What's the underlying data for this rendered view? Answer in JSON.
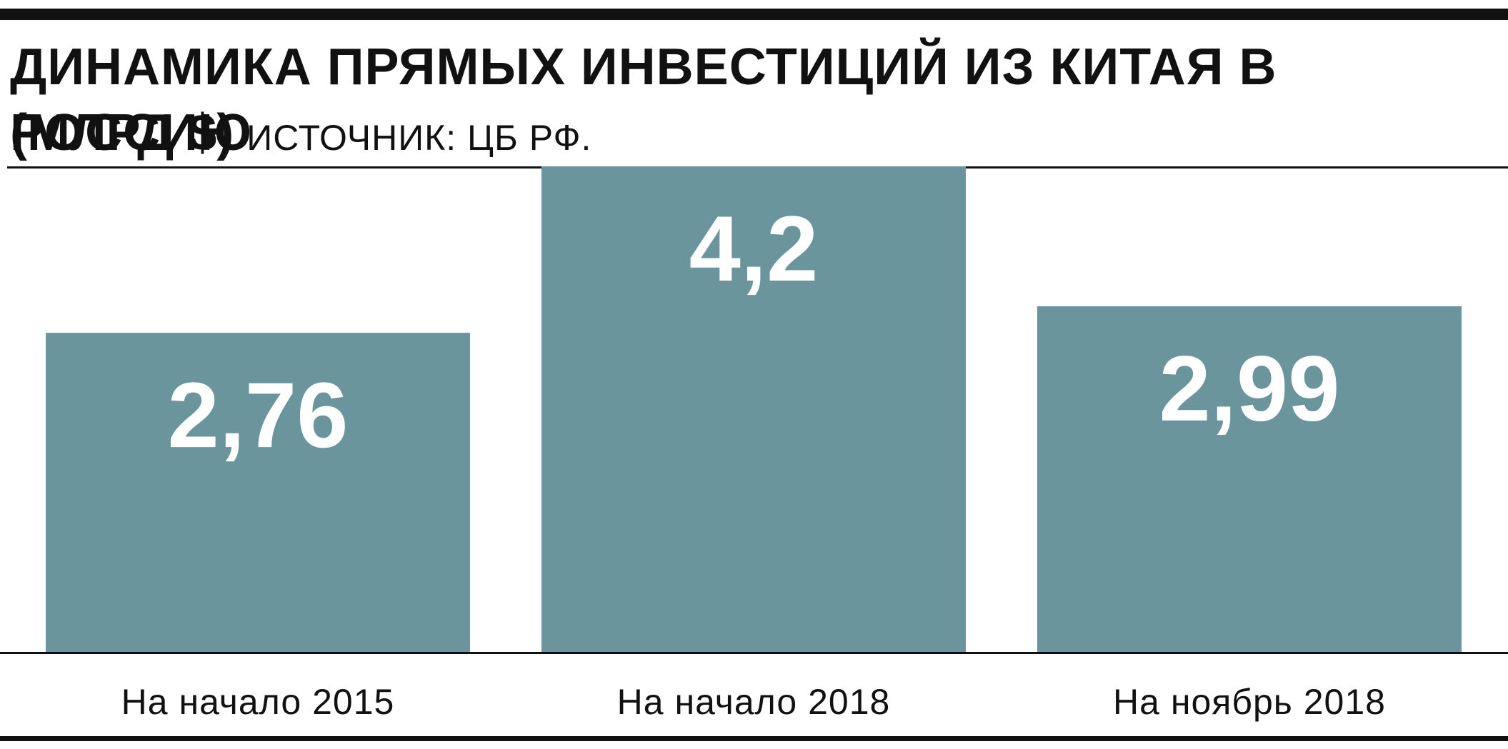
{
  "chart_data": {
    "type": "bar",
    "title": "ДИНАМИКА ПРЯМЫХ ИНВЕСТИЦИЙ ИЗ КИТАЯ В РОССИЮ",
    "title_unit": "(МЛРД $)",
    "source": "ИСТОЧНИК: ЦБ РФ.",
    "categories": [
      "На начало 2015",
      "На начало 2018",
      "На ноябрь 2018"
    ],
    "values": [
      2.76,
      4.2,
      2.99
    ],
    "value_labels": [
      "2,76",
      "4,2",
      "2,99"
    ],
    "ylim": [
      0,
      4.2
    ],
    "grid": false,
    "legend": "none",
    "bar_color": "#6b959d",
    "value_label_color": "#ffffff"
  }
}
